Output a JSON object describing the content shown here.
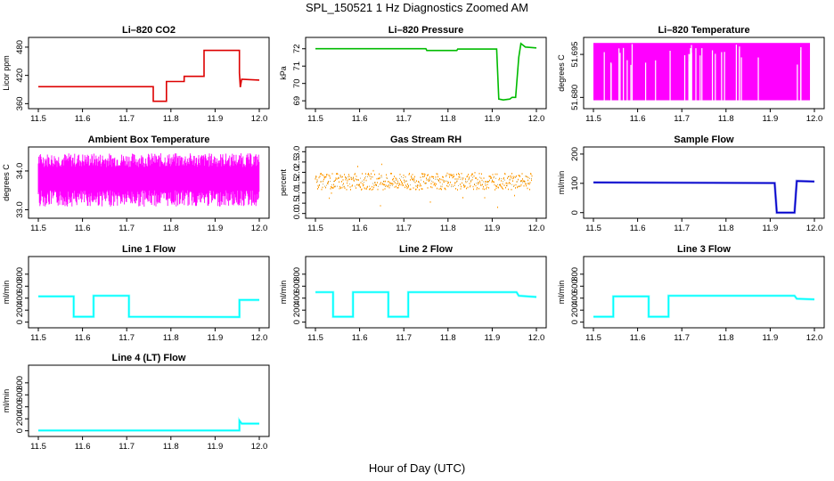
{
  "page": {
    "title": "SPL_150521  1 Hz Diagnostics Zoomed AM",
    "xlabel": "Hour of Day (UTC)"
  },
  "chart_data": [
    {
      "id": "co2",
      "type": "line",
      "title": "Li–820 CO2",
      "xlabel": "",
      "ylabel": "Licor ppm",
      "color": "#dd0000",
      "xlim": [
        11.5,
        12.0
      ],
      "ylim": [
        355,
        495
      ],
      "xticks": [
        11.5,
        11.6,
        11.7,
        11.8,
        11.9,
        12.0
      ],
      "yticks": [
        360,
        420,
        480
      ],
      "series": [
        {
          "values": [
            [
              11.5,
              396
            ],
            [
              11.76,
              396
            ],
            [
              11.76,
              365
            ],
            [
              11.79,
              365
            ],
            [
              11.79,
              407
            ],
            [
              11.83,
              407
            ],
            [
              11.83,
              418
            ],
            [
              11.875,
              418
            ],
            [
              11.875,
              473
            ],
            [
              11.955,
              473
            ],
            [
              11.955,
              425
            ],
            [
              11.957,
              395
            ],
            [
              11.96,
              412
            ],
            [
              12.0,
              410
            ]
          ]
        }
      ]
    },
    {
      "id": "pressure",
      "type": "line",
      "title": "Li–820 Pressure",
      "xlabel": "",
      "ylabel": "kPa",
      "color": "#00bb00",
      "xlim": [
        11.5,
        12.0
      ],
      "ylim": [
        68.7,
        72.5
      ],
      "xticks": [
        11.5,
        11.6,
        11.7,
        11.8,
        11.9,
        12.0
      ],
      "yticks": [
        69,
        70,
        71,
        72
      ],
      "series": [
        {
          "values": [
            [
              11.5,
              72.0
            ],
            [
              11.75,
              72.0
            ],
            [
              11.752,
              71.9
            ],
            [
              11.82,
              71.9
            ],
            [
              11.822,
              71.98
            ],
            [
              11.91,
              71.98
            ],
            [
              11.915,
              69.1
            ],
            [
              11.925,
              69.05
            ],
            [
              11.94,
              69.1
            ],
            [
              11.945,
              69.2
            ],
            [
              11.953,
              69.2
            ],
            [
              11.96,
              71.5
            ],
            [
              11.965,
              72.3
            ],
            [
              11.975,
              72.1
            ],
            [
              12.0,
              72.05
            ]
          ]
        }
      ]
    },
    {
      "id": "licor_temp",
      "type": "line",
      "title": "Li–820 Temperature",
      "xlabel": "",
      "ylabel": "degrees C",
      "color": "#ff00ff",
      "xlim": [
        11.5,
        12.0
      ],
      "ylim": [
        51.677,
        51.7
      ],
      "xticks": [
        11.5,
        11.6,
        11.7,
        11.8,
        11.9,
        12.0
      ],
      "yticks": [
        51.68,
        51.695
      ],
      "ytick_labels": [
        "51.680",
        "51.695"
      ],
      "series": [
        {
          "values": [
            [
              11.5,
              51.679
            ],
            [
              11.99,
              51.699
            ]
          ]
        }
      ]
    },
    {
      "id": "box_temp",
      "type": "line",
      "title": "Ambient Box Temperature",
      "xlabel": "",
      "ylabel": "degrees C",
      "color": "#ff00ff",
      "xlim": [
        11.5,
        12.0
      ],
      "ylim": [
        32.85,
        34.55
      ],
      "xticks": [
        11.5,
        11.6,
        11.7,
        11.8,
        11.9,
        12.0
      ],
      "yticks": [
        33.0,
        34.0
      ],
      "ytick_labels": [
        "33.0",
        "34.0"
      ],
      "series": [
        {
          "values": [
            [
              11.5,
              33.2
            ],
            [
              12.0,
              34.4
            ]
          ]
        }
      ]
    },
    {
      "id": "rh",
      "type": "scatter",
      "title": "Gas Stream RH",
      "xlabel": "",
      "ylabel": "percent",
      "color": "#ff9900",
      "xlim": [
        11.5,
        12.0
      ],
      "ylim": [
        -0.1,
        3.1
      ],
      "xticks": [
        11.5,
        11.6,
        11.7,
        11.8,
        11.9,
        12.0
      ],
      "yticks": [
        0.0,
        0.5,
        1.0,
        1.5,
        2.0,
        2.5,
        3.0
      ],
      "ytick_labels": [
        "0.0",
        "0.5",
        "1.0",
        "1.5",
        "2.0",
        "2.5",
        "3.0"
      ],
      "series": [
        {
          "values": [
            [
              11.5,
              1.1
            ],
            [
              12.0,
              2.0
            ]
          ]
        }
      ]
    },
    {
      "id": "sample_flow",
      "type": "line",
      "title": "Sample Flow",
      "xlabel": "",
      "ylabel": "ml/min",
      "color": "#0000cc",
      "xlim": [
        11.5,
        12.0
      ],
      "ylim": [
        -10,
        215
      ],
      "xticks": [
        11.5,
        11.6,
        11.7,
        11.8,
        11.9,
        12.0
      ],
      "yticks": [
        0,
        100,
        200
      ],
      "series": [
        {
          "values": [
            [
              11.5,
              103
            ],
            [
              11.91,
              101
            ],
            [
              11.915,
              0
            ],
            [
              11.955,
              0
            ],
            [
              11.96,
              108
            ],
            [
              12.0,
              106
            ]
          ]
        }
      ]
    },
    {
      "id": "line1",
      "type": "line",
      "title": "Line 1 Flow",
      "xlabel": "",
      "ylabel": "ml/min",
      "color": "#00ffff",
      "xlim": [
        11.5,
        12.0
      ],
      "ylim": [
        -50,
        1050
      ],
      "xticks": [
        11.5,
        11.6,
        11.7,
        11.8,
        11.9,
        12.0
      ],
      "yticks": [
        0,
        200,
        400,
        600,
        800
      ],
      "series": [
        {
          "values": [
            [
              11.5,
              430
            ],
            [
              11.58,
              430
            ],
            [
              11.58,
              90
            ],
            [
              11.625,
              90
            ],
            [
              11.625,
              440
            ],
            [
              11.705,
              440
            ],
            [
              11.705,
              90
            ],
            [
              11.955,
              85
            ],
            [
              11.955,
              370
            ],
            [
              12.0,
              370
            ]
          ]
        }
      ]
    },
    {
      "id": "line2",
      "type": "line",
      "title": "Line 2 Flow",
      "xlabel": "",
      "ylabel": "ml/min",
      "color": "#00ffff",
      "xlim": [
        11.5,
        12.0
      ],
      "ylim": [
        -50,
        1050
      ],
      "xticks": [
        11.5,
        11.6,
        11.7,
        11.8,
        11.9,
        12.0
      ],
      "yticks": [
        0,
        200,
        400,
        600,
        800
      ],
      "series": [
        {
          "values": [
            [
              11.5,
              500
            ],
            [
              11.54,
              500
            ],
            [
              11.54,
              90
            ],
            [
              11.585,
              90
            ],
            [
              11.585,
              500
            ],
            [
              11.665,
              500
            ],
            [
              11.665,
              90
            ],
            [
              11.71,
              90
            ],
            [
              11.71,
              500
            ],
            [
              11.955,
              500
            ],
            [
              11.96,
              440
            ],
            [
              12.0,
              420
            ]
          ]
        }
      ]
    },
    {
      "id": "line3",
      "type": "line",
      "title": "Line 3 Flow",
      "xlabel": "",
      "ylabel": "ml/min",
      "color": "#00ffff",
      "xlim": [
        11.5,
        12.0
      ],
      "ylim": [
        -50,
        1050
      ],
      "xticks": [
        11.5,
        11.6,
        11.7,
        11.8,
        11.9,
        12.0
      ],
      "yticks": [
        0,
        200,
        400,
        600,
        800
      ],
      "series": [
        {
          "values": [
            [
              11.5,
              90
            ],
            [
              11.545,
              90
            ],
            [
              11.545,
              430
            ],
            [
              11.625,
              430
            ],
            [
              11.625,
              90
            ],
            [
              11.67,
              90
            ],
            [
              11.67,
              440
            ],
            [
              11.955,
              440
            ],
            [
              11.96,
              390
            ],
            [
              12.0,
              380
            ]
          ]
        }
      ]
    },
    {
      "id": "line4",
      "type": "line",
      "title": "Line 4 (LT) Flow",
      "xlabel": "",
      "ylabel": "ml/min",
      "color": "#00ffff",
      "xlim": [
        11.5,
        12.0
      ],
      "ylim": [
        -50,
        1050
      ],
      "xticks": [
        11.5,
        11.6,
        11.7,
        11.8,
        11.9,
        12.0
      ],
      "yticks": [
        0,
        200,
        400,
        600,
        800
      ],
      "series": [
        {
          "values": [
            [
              11.5,
              5
            ],
            [
              11.955,
              5
            ],
            [
              11.955,
              170
            ],
            [
              11.96,
              120
            ],
            [
              12.0,
              120
            ]
          ]
        }
      ]
    }
  ]
}
